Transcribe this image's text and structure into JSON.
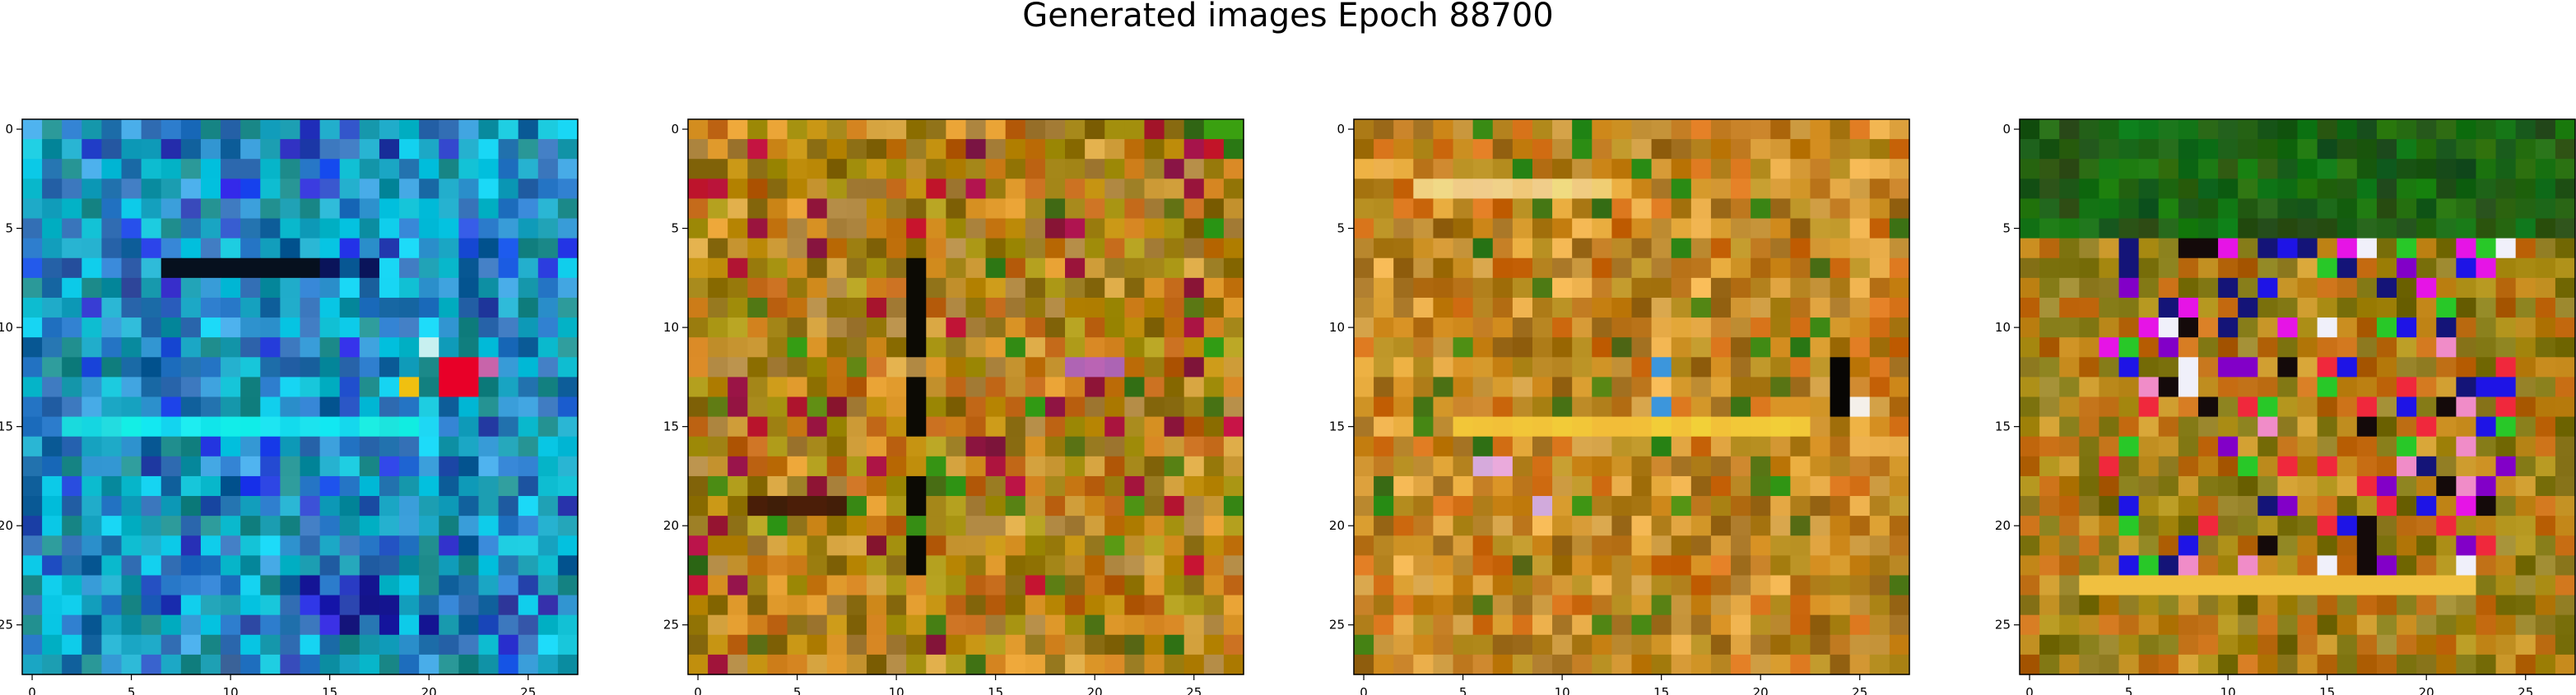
{
  "figure": {
    "title": "Generated images Epoch 88700"
  },
  "chart_data": [
    {
      "type": "heatmap",
      "title": "",
      "xlabel": "",
      "ylabel": "",
      "grid": false,
      "shape": [
        28,
        28
      ],
      "palette": "blue-cyan",
      "xticks": [
        0,
        5,
        10,
        15,
        20,
        25
      ],
      "yticks": [
        0,
        5,
        10,
        15,
        20,
        25
      ],
      "xlim": [
        -0.5,
        27.5
      ],
      "ylim": [
        27.5,
        -0.5
      ],
      "features": [
        {
          "desc": "dark stripe",
          "row": 7,
          "cols": [
            7,
            14
          ],
          "color": "#06101e"
        },
        {
          "desc": "bright red patch",
          "row": 13,
          "cols": [
            21,
            22
          ],
          "color": "#e80028"
        },
        {
          "desc": "pink/purple pixels",
          "row": 12,
          "cols": [
            21,
            23
          ],
          "color": "#d06aa8"
        },
        {
          "desc": "yellow pixel",
          "row": 13,
          "cols": [
            19,
            19
          ],
          "color": "#f0c010"
        },
        {
          "desc": "cyan band",
          "row": 15,
          "cols": [
            2,
            20
          ],
          "color": "#10dde6"
        }
      ]
    },
    {
      "type": "heatmap",
      "title": "",
      "xlabel": "",
      "ylabel": "",
      "grid": false,
      "shape": [
        28,
        28
      ],
      "palette": "ochre-olive",
      "xticks": [
        0,
        5,
        10,
        15,
        20,
        25
      ],
      "yticks": [
        0,
        5,
        10,
        15,
        20,
        25
      ],
      "xlim": [
        -0.5,
        27.5
      ],
      "ylim": [
        27.5,
        -0.5
      ],
      "features": [
        {
          "desc": "dark vertical column",
          "row_range": [
            5,
            22
          ],
          "col": 11,
          "color": "#0c0a04"
        },
        {
          "desc": "dark row",
          "row": 19,
          "cols": [
            3,
            7
          ],
          "color": "#3a1e08"
        },
        {
          "desc": "green corner",
          "row": 0,
          "cols": [
            26,
            27
          ],
          "color": "#3aa010"
        }
      ]
    },
    {
      "type": "heatmap",
      "title": "",
      "xlabel": "",
      "ylabel": "",
      "grid": false,
      "shape": [
        28,
        28
      ],
      "palette": "ochre-gold",
      "xticks": [
        0,
        5,
        10,
        15,
        20,
        25
      ],
      "yticks": [
        0,
        5,
        10,
        15,
        20,
        25
      ],
      "xlim": [
        -0.5,
        27.5
      ],
      "ylim": [
        27.5,
        -0.5
      ],
      "features": [
        {
          "desc": "bright band",
          "row": 3,
          "cols": [
            3,
            12
          ],
          "color": "#f0c870"
        },
        {
          "desc": "bright band",
          "row": 15,
          "cols": [
            5,
            22
          ],
          "color": "#f2bc38"
        },
        {
          "desc": "white pixel",
          "row": 14,
          "cols": [
            25,
            25
          ],
          "color": "#f4f0ea"
        },
        {
          "desc": "dark column",
          "row_range": [
            12,
            14
          ],
          "col": 24,
          "color": "#080604"
        }
      ]
    },
    {
      "type": "heatmap",
      "title": "",
      "xlabel": "",
      "ylabel": "",
      "grid": false,
      "shape": [
        28,
        28
      ],
      "palette": "green-ochre-saturated",
      "xticks": [
        0,
        5,
        10,
        15,
        20,
        25
      ],
      "yticks": [
        0,
        5,
        10,
        15,
        20,
        25
      ],
      "xlim": [
        -0.5,
        27.5
      ],
      "ylim": [
        27.5,
        -0.5
      ],
      "features": [
        {
          "desc": "dark green rows",
          "row_range": [
            0,
            5
          ],
          "color": "#0c5a0c"
        },
        {
          "desc": "saturated colored pixels",
          "row_range": [
            4,
            23
          ],
          "col_range": [
            4,
            24
          ]
        },
        {
          "desc": "bright band",
          "row": 23,
          "cols": [
            3,
            22
          ],
          "color": "#f0c040"
        }
      ]
    }
  ]
}
